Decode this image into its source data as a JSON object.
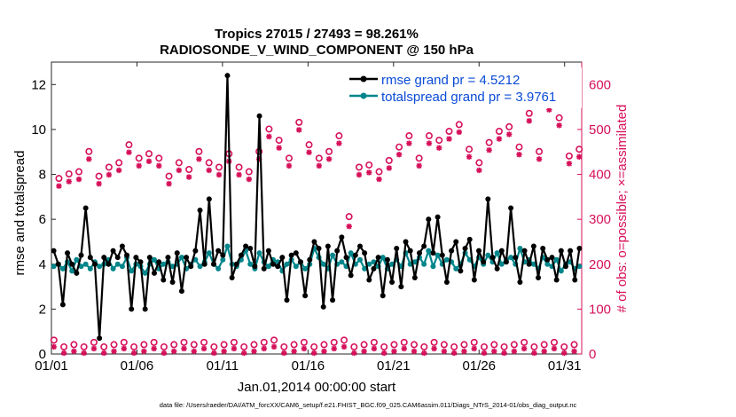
{
  "chart_data": {
    "type": "line",
    "title_line1": "Tropics 27015 / 27493 = 98.261%",
    "title_line2": "RADIOSONDE_V_WIND_COMPONENT @ 150 hPa",
    "xlabel": "Jan.01,2014 00:00:00 start",
    "ylabel_left": "rmse and totalspread",
    "ylabel_right": "# of obs: o=possible; ×=assimilated",
    "footer": "data file: /Users/raeder/DAI/ATM_forcXX/CAM6_setup/f.e21.FHIST_BGC.f09_025.CAM6assim.011/Diags_NTrS_2014-01/obs_diag_output.nc",
    "x_tick_labels": [
      "01/01",
      "01/06",
      "01/11",
      "01/16",
      "01/21",
      "01/26",
      "01/31"
    ],
    "x_tick_days": [
      1,
      6,
      11,
      16,
      21,
      26,
      31
    ],
    "xlim": [
      1,
      32
    ],
    "ylim_left": [
      0,
      13
    ],
    "yticks_left": [
      0,
      2,
      4,
      6,
      8,
      10,
      12
    ],
    "ylim_right": [
      0,
      650
    ],
    "yticks_right": [
      0,
      100,
      200,
      300,
      400,
      500,
      600
    ],
    "colors": {
      "rmse": "#000000",
      "spread": "#00868b",
      "obs": "#d6105a",
      "legend_text": "#0a4bd6"
    },
    "series": [
      {
        "name": "rmse grand pr = 4.5212",
        "values": [
          4.6,
          4.0,
          2.2,
          4.5,
          4.0,
          3.6,
          4.4,
          6.5,
          4.3,
          4.0,
          0.7,
          4.3,
          4.0,
          4.6,
          4.3,
          4.8,
          4.4,
          2.0,
          4.3,
          4.1,
          2.0,
          4.3,
          3.6,
          4.1,
          3.3,
          4.3,
          3.2,
          4.5,
          2.8,
          4.3,
          3.9,
          4.6,
          6.4,
          4.0,
          6.9,
          4.0,
          4.6,
          4.4,
          12.4,
          3.4,
          4.0,
          4.4,
          4.8,
          4.7,
          3.9,
          10.6,
          3.8,
          4.6,
          4.0,
          3.9,
          4.3,
          2.4,
          4.4,
          4.5,
          4.1,
          2.6,
          4.2,
          5.0,
          4.7,
          2.1,
          4.8,
          2.4,
          4.6,
          5.2,
          4.3,
          3.5,
          4.4,
          4.8,
          4.5,
          3.3,
          3.8,
          4.3,
          2.6,
          4.2,
          3.2,
          4.7,
          3.0,
          5.0,
          4.6,
          3.4,
          4.5,
          4.8,
          6.0,
          4.5,
          6.1,
          4.4,
          3.2,
          4.6,
          5.0,
          3.7,
          4.7,
          5.1,
          3.3,
          4.6,
          4.1,
          6.9,
          4.3,
          3.8,
          4.6,
          4.1,
          6.5,
          4.3,
          3.2,
          4.6,
          4.0,
          4.8,
          3.4,
          4.7,
          4.2,
          4.3,
          3.3,
          4.6,
          3.9,
          4.6,
          3.3,
          4.7
        ]
      },
      {
        "name": "totalspread grand pr = 3.9761",
        "values": [
          3.9,
          4.0,
          3.8,
          4.1,
          3.7,
          4.2,
          3.9,
          4.0,
          3.8,
          4.1,
          3.9,
          4.0,
          4.2,
          3.8,
          4.0,
          3.9,
          4.3,
          3.7,
          4.0,
          3.9,
          3.6,
          4.0,
          4.2,
          3.8,
          4.0,
          4.1,
          3.9,
          4.0,
          4.3,
          3.8,
          4.0,
          4.2,
          3.9,
          4.1,
          4.5,
          4.0,
          3.8,
          4.2,
          4.8,
          4.0,
          3.9,
          4.2,
          4.6,
          4.0,
          3.8,
          4.5,
          4.1,
          3.9,
          4.2,
          4.1,
          3.7,
          4.0,
          4.2,
          3.9,
          4.1,
          3.8,
          4.0,
          4.7,
          4.3,
          4.0,
          3.8,
          4.4,
          4.0,
          4.1,
          3.9,
          4.5,
          4.0,
          4.2,
          3.8,
          4.0,
          4.1,
          3.9,
          4.3,
          3.8,
          4.0,
          4.2,
          3.9,
          4.5,
          4.0,
          4.1,
          4.3,
          4.0,
          4.6,
          3.9,
          4.4,
          4.0,
          4.2,
          4.1,
          3.8,
          4.0,
          4.5,
          4.2,
          3.9,
          4.3,
          4.0,
          4.4,
          4.1,
          4.5,
          4.0,
          4.2,
          4.3,
          4.0,
          4.7,
          4.1,
          4.2,
          4.0,
          3.8,
          4.3,
          4.0,
          3.9,
          4.2,
          3.7,
          4.0,
          4.1,
          3.8,
          3.9
        ]
      },
      {
        "name": "obs possible",
        "values": [
          25,
          385,
          10,
          395,
          15,
          400,
          10,
          445,
          20,
          390,
          10,
          410,
          15,
          420,
          20,
          460,
          10,
          430,
          15,
          440,
          20,
          430,
          10,
          390,
          15,
          420,
          20,
          405,
          15,
          445,
          20,
          420,
          10,
          410,
          15,
          440,
          20,
          410,
          10,
          400,
          15,
          445,
          20,
          495,
          25,
          470,
          10,
          430,
          15,
          510,
          20,
          460,
          10,
          430,
          15,
          445,
          20,
          480,
          25,
          300,
          10,
          410,
          15,
          415,
          20,
          400,
          10,
          425,
          15,
          455,
          20,
          480,
          15,
          430,
          10,
          480,
          20,
          470,
          15,
          490,
          10,
          505,
          15,
          450,
          20,
          420,
          10,
          465,
          15,
          490,
          10,
          500,
          15,
          455,
          20,
          530,
          10,
          445,
          15,
          555,
          20,
          520,
          10,
          435,
          15,
          450
        ]
      },
      {
        "name": "obs assimilated",
        "values": [
          22,
          380,
          8,
          390,
          12,
          395,
          8,
          440,
          18,
          385,
          8,
          405,
          12,
          415,
          18,
          455,
          8,
          425,
          12,
          435,
          18,
          425,
          8,
          385,
          12,
          415,
          18,
          400,
          12,
          440,
          18,
          415,
          8,
          405,
          12,
          435,
          18,
          405,
          8,
          395,
          12,
          440,
          18,
          490,
          22,
          465,
          8,
          425,
          12,
          505,
          18,
          455,
          8,
          425,
          12,
          440,
          18,
          475,
          22,
          290,
          8,
          405,
          12,
          410,
          18,
          395,
          8,
          420,
          12,
          450,
          18,
          475,
          12,
          425,
          8,
          475,
          18,
          465,
          12,
          485,
          8,
          500,
          12,
          445,
          18,
          415,
          8,
          460,
          12,
          485,
          8,
          495,
          12,
          450,
          18,
          525,
          8,
          440,
          12,
          550,
          18,
          515,
          8,
          430,
          12,
          445
        ]
      }
    ]
  }
}
